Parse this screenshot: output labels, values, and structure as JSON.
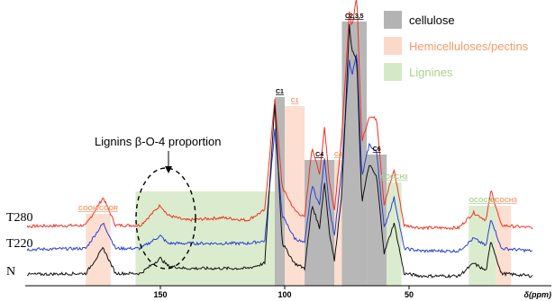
{
  "chart_data": {
    "type": "line",
    "title": "",
    "xlabel": "δ(ppm)",
    "ylabel": "",
    "x_axis": {
      "reversed": true,
      "range": [
        210,
        0
      ],
      "ticks": [
        150,
        100,
        50
      ]
    },
    "grid": false,
    "legend": {
      "placement": "top-right",
      "entries": [
        {
          "name": "cellulose",
          "color": "#b3b3b3",
          "text_color": "#000000"
        },
        {
          "name": "Hemicelluloses/pectins",
          "color": "#fbd9c8",
          "text_color": "#f29a6b"
        },
        {
          "name": "Lignines",
          "color": "#d5e9c6",
          "text_color": "#a9d18e"
        }
      ]
    },
    "regions": [
      {
        "category": "hemicelluloses",
        "x_from": 180,
        "x_to": 170,
        "label": "COOH/COOR",
        "label_color": "#f29a6b"
      },
      {
        "category": "lignines",
        "x_from": 160,
        "x_to": 104,
        "label": "",
        "label_color": "#a9d18e"
      },
      {
        "category": "cellulose",
        "x_from": 104,
        "x_to": 100,
        "label": "C1",
        "label_color": "#000000"
      },
      {
        "category": "hemicelluloses",
        "x_from": 100,
        "x_to": 92,
        "label": "C1",
        "label_color": "#f29a6b"
      },
      {
        "category": "cellulose",
        "x_from": 92,
        "x_to": 80,
        "label": "C4",
        "label_color": "#000000"
      },
      {
        "category": "hemicelluloses",
        "x_from": 80,
        "x_to": 77,
        "label": "C4",
        "label_color": "#f29a6b"
      },
      {
        "category": "cellulose",
        "x_from": 77,
        "x_to": 67,
        "label": "C2,3,5",
        "label_color": "#000000"
      },
      {
        "category": "cellulose",
        "x_from": 67,
        "x_to": 59,
        "label": "C6",
        "label_color": "#000000"
      },
      {
        "category": "lignines",
        "x_from": 59,
        "x_to": 53,
        "label": "COOCH3",
        "label_color": "#a9d18e"
      },
      {
        "category": "lignines",
        "x_from": 26,
        "x_to": 15,
        "label": "OCOCH3",
        "label_color": "#a9d18e"
      },
      {
        "category": "hemicelluloses",
        "x_from": 15,
        "x_to": 9,
        "label": "OCOCH3",
        "label_color": "#f29a6b"
      }
    ],
    "annotation": {
      "text": "Lignins β-O-4 proportion",
      "x_center": 148
    },
    "series": [
      {
        "name": "T280",
        "color": "#ee3322",
        "offset": 0.5,
        "points": [
          [
            210,
            0.015
          ],
          [
            180,
            0.02
          ],
          [
            173,
            0.13
          ],
          [
            168,
            0.02
          ],
          [
            158,
            0.02
          ],
          [
            150,
            0.1
          ],
          [
            147,
            0.06
          ],
          [
            140,
            0.04
          ],
          [
            125,
            0.05
          ],
          [
            115,
            0.04
          ],
          [
            108,
            0.08
          ],
          [
            104,
            0.52
          ],
          [
            101,
            0.17
          ],
          [
            96,
            0.08
          ],
          [
            92,
            0.05
          ],
          [
            89,
            0.33
          ],
          [
            86,
            0.22
          ],
          [
            84,
            0.41
          ],
          [
            82,
            0.19
          ],
          [
            80,
            0.08
          ],
          [
            77,
            0.38
          ],
          [
            74,
            0.86
          ],
          [
            73,
            0.8
          ],
          [
            71,
            0.93
          ],
          [
            69,
            0.35
          ],
          [
            66,
            0.45
          ],
          [
            63,
            0.44
          ],
          [
            60,
            0.1
          ],
          [
            56,
            0.24
          ],
          [
            52,
            0.02
          ],
          [
            45,
            0.01
          ],
          [
            30,
            0.01
          ],
          [
            24,
            0.07
          ],
          [
            19,
            0.04
          ],
          [
            17,
            0.16
          ],
          [
            13,
            0.02
          ],
          [
            0,
            0.01
          ]
        ]
      },
      {
        "name": "T220",
        "color": "#2b3fd1",
        "offset": 0.26,
        "points": [
          [
            210,
            0.015
          ],
          [
            180,
            0.02
          ],
          [
            173,
            0.12
          ],
          [
            168,
            0.02
          ],
          [
            158,
            0.02
          ],
          [
            150,
            0.07
          ],
          [
            147,
            0.04
          ],
          [
            140,
            0.04
          ],
          [
            125,
            0.04
          ],
          [
            115,
            0.04
          ],
          [
            108,
            0.05
          ],
          [
            104,
            0.49
          ],
          [
            101,
            0.15
          ],
          [
            96,
            0.06
          ],
          [
            92,
            0.04
          ],
          [
            89,
            0.27
          ],
          [
            86,
            0.19
          ],
          [
            84,
            0.38
          ],
          [
            82,
            0.18
          ],
          [
            80,
            0.07
          ],
          [
            77,
            0.33
          ],
          [
            74,
            0.77
          ],
          [
            73,
            0.7
          ],
          [
            71,
            0.8
          ],
          [
            69,
            0.3
          ],
          [
            66,
            0.43
          ],
          [
            63,
            0.4
          ],
          [
            60,
            0.1
          ],
          [
            56,
            0.22
          ],
          [
            52,
            0.02
          ],
          [
            45,
            0.01
          ],
          [
            30,
            0.01
          ],
          [
            24,
            0.06
          ],
          [
            19,
            0.03
          ],
          [
            17,
            0.14
          ],
          [
            13,
            0.02
          ],
          [
            0,
            0.01
          ]
        ]
      },
      {
        "name": "N",
        "color": "#111111",
        "offset": 0.0,
        "points": [
          [
            210,
            0.015
          ],
          [
            180,
            0.02
          ],
          [
            173,
            0.12
          ],
          [
            168,
            0.02
          ],
          [
            158,
            0.02
          ],
          [
            150,
            0.08
          ],
          [
            147,
            0.05
          ],
          [
            140,
            0.04
          ],
          [
            125,
            0.04
          ],
          [
            115,
            0.04
          ],
          [
            108,
            0.06
          ],
          [
            104,
            0.69
          ],
          [
            101,
            0.14
          ],
          [
            96,
            0.06
          ],
          [
            92,
            0.04
          ],
          [
            89,
            0.29
          ],
          [
            86,
            0.2
          ],
          [
            84,
            0.38
          ],
          [
            82,
            0.18
          ],
          [
            80,
            0.07
          ],
          [
            77,
            0.34
          ],
          [
            74,
            1.0
          ],
          [
            73,
            0.9
          ],
          [
            71,
            0.86
          ],
          [
            69,
            0.3
          ],
          [
            66,
            0.45
          ],
          [
            63,
            0.4
          ],
          [
            60,
            0.1
          ],
          [
            56,
            0.22
          ],
          [
            52,
            0.02
          ],
          [
            45,
            0.01
          ],
          [
            30,
            0.01
          ],
          [
            24,
            0.06
          ],
          [
            19,
            0.03
          ],
          [
            17,
            0.15
          ],
          [
            13,
            0.02
          ],
          [
            0,
            0.01
          ]
        ]
      }
    ]
  }
}
